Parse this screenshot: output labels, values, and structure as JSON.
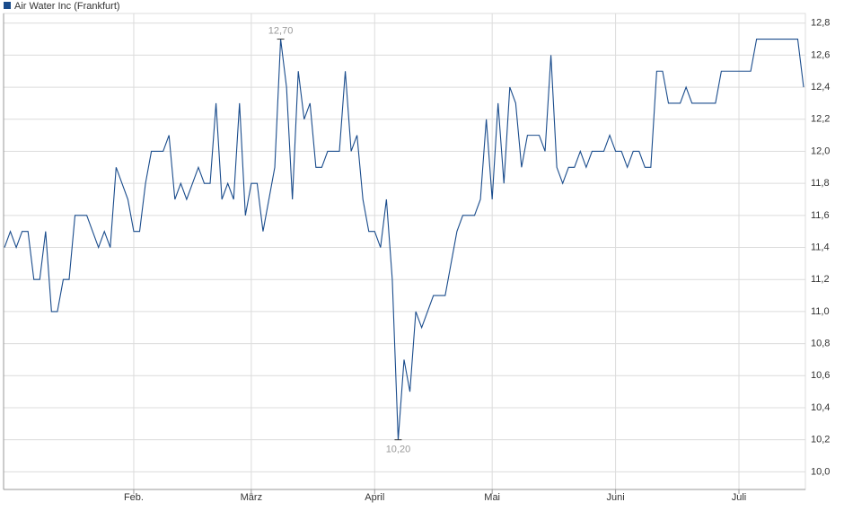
{
  "chart_data": {
    "type": "line",
    "x": [
      0,
      1,
      2,
      3,
      4,
      5,
      6,
      7,
      8,
      9,
      10,
      11,
      12,
      13,
      14,
      15,
      16,
      17,
      18,
      19,
      20,
      21,
      22,
      23,
      24,
      25,
      26,
      27,
      28,
      29,
      30,
      31,
      32,
      33,
      34,
      35,
      36,
      37,
      38,
      39,
      40,
      41,
      42,
      43,
      44,
      45,
      46,
      47,
      48,
      49,
      50,
      51,
      52,
      53,
      54,
      55,
      56,
      57,
      58,
      59,
      60,
      61,
      62,
      63,
      64,
      65,
      66,
      67,
      68,
      69,
      70,
      71,
      72,
      73,
      74,
      75,
      76,
      77,
      78,
      79,
      80,
      81,
      82,
      83,
      84,
      85,
      86,
      87,
      88,
      89,
      90,
      91,
      92,
      93,
      94,
      95,
      96,
      97,
      98,
      99,
      100,
      101,
      102,
      103,
      104,
      105,
      106,
      107,
      108,
      109,
      110,
      111,
      112,
      113,
      114,
      115,
      116,
      117,
      118,
      119,
      120,
      121,
      122,
      123,
      124,
      125,
      126,
      127,
      128,
      129,
      130,
      131,
      132,
      133,
      134,
      135,
      136
    ],
    "series": [
      {
        "name": "Air Water Inc (Frankfurt)",
        "color": "#1a4c8c",
        "values": [
          11.4,
          11.5,
          11.4,
          11.5,
          11.5,
          11.2,
          11.2,
          11.5,
          11.0,
          11.0,
          11.2,
          11.2,
          11.6,
          11.6,
          11.6,
          11.5,
          11.4,
          11.5,
          11.4,
          11.9,
          11.8,
          11.7,
          11.5,
          11.5,
          11.8,
          12.0,
          12.0,
          12.0,
          12.1,
          11.7,
          11.8,
          11.7,
          11.8,
          11.9,
          11.8,
          11.8,
          12.3,
          11.7,
          11.8,
          11.7,
          12.3,
          11.6,
          11.8,
          11.8,
          11.5,
          11.7,
          11.9,
          12.7,
          12.4,
          11.7,
          12.5,
          12.2,
          12.3,
          11.9,
          11.9,
          12.0,
          12.0,
          12.0,
          12.5,
          12.0,
          12.1,
          11.7,
          11.5,
          11.5,
          11.4,
          11.7,
          11.2,
          10.2,
          10.7,
          10.5,
          11.0,
          10.9,
          11.0,
          11.1,
          11.1,
          11.1,
          11.3,
          11.5,
          11.6,
          11.6,
          11.6,
          11.7,
          12.2,
          11.7,
          12.3,
          11.8,
          12.4,
          12.3,
          11.9,
          12.1,
          12.1,
          12.1,
          12.0,
          12.6,
          11.9,
          11.8,
          11.9,
          11.9,
          12.0,
          11.9,
          12.0,
          12.0,
          12.0,
          12.1,
          12.0,
          12.0,
          11.9,
          12.0,
          12.0,
          11.9,
          11.9,
          12.5,
          12.5,
          12.3,
          12.3,
          12.3,
          12.4,
          12.3,
          12.3,
          12.3,
          12.3,
          12.3,
          12.5,
          12.5,
          12.5,
          12.5,
          12.5,
          12.5,
          12.7,
          12.7,
          12.7,
          12.7,
          12.7,
          12.7,
          12.7,
          12.7,
          12.4
        ]
      }
    ],
    "annotations": [
      {
        "x": 47,
        "y": 12.7,
        "label": "12,70",
        "position": "above"
      },
      {
        "x": 67,
        "y": 10.2,
        "label": "10,20",
        "position": "below"
      }
    ],
    "xlim": [
      0,
      136
    ],
    "xticks": [
      {
        "value": 22,
        "label": "Feb."
      },
      {
        "value": 42,
        "label": "März"
      },
      {
        "value": 63,
        "label": "April"
      },
      {
        "value": 83,
        "label": "Mai"
      },
      {
        "value": 104,
        "label": "Juni"
      },
      {
        "value": 125,
        "label": "Juli"
      }
    ],
    "ylim": [
      9.89,
      12.86
    ],
    "yticks": [
      {
        "value": 10.0,
        "label": "10,0"
      },
      {
        "value": 10.2,
        "label": "10,2"
      },
      {
        "value": 10.4,
        "label": "10,4"
      },
      {
        "value": 10.6,
        "label": "10,6"
      },
      {
        "value": 10.8,
        "label": "10,8"
      },
      {
        "value": 11.0,
        "label": "11,0"
      },
      {
        "value": 11.2,
        "label": "11,2"
      },
      {
        "value": 11.4,
        "label": "11,4"
      },
      {
        "value": 11.6,
        "label": "11,6"
      },
      {
        "value": 11.8,
        "label": "11,8"
      },
      {
        "value": 12.0,
        "label": "12,0"
      },
      {
        "value": 12.2,
        "label": "12,2"
      },
      {
        "value": 12.4,
        "label": "12,4"
      },
      {
        "value": 12.6,
        "label": "12,6"
      },
      {
        "value": 12.8,
        "label": "12,8"
      }
    ],
    "grid": true,
    "legend": "top-left"
  }
}
